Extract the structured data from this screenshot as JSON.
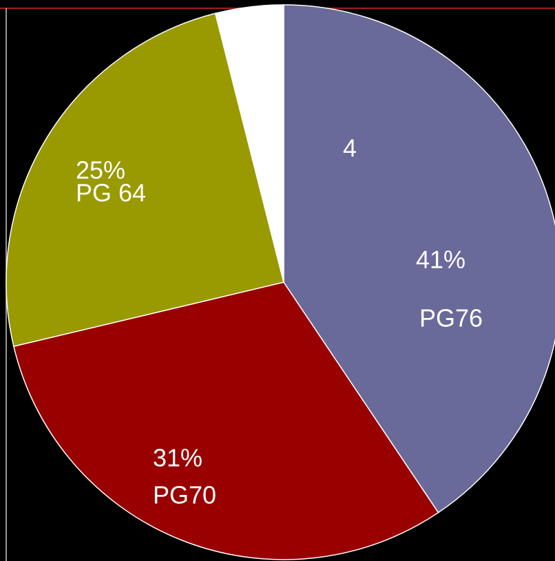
{
  "chart_data": {
    "type": "pie",
    "categories": [
      "PG76",
      "PG70",
      "PG 64",
      null
    ],
    "values": [
      41,
      31,
      25,
      4
    ],
    "value_labels": [
      "41%",
      "31%",
      "25%",
      "4"
    ],
    "colors": [
      "#69699a",
      "#990000",
      "#999900",
      "#ffffff"
    ]
  }
}
